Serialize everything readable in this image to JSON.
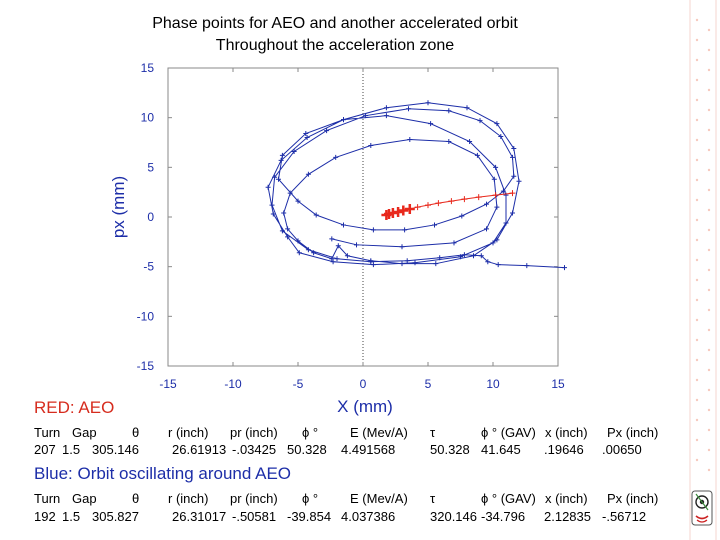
{
  "header": {
    "title_line1": "Phase points for AEO and another accelerated orbit",
    "title_line2": "Throughout the acceleration zone"
  },
  "chart_data": {
    "type": "scatter",
    "title": "Phase points for AEO and another accelerated orbit Throughout the acceleration zone",
    "xlabel": "X (mm)",
    "ylabel": "px (mm)",
    "xlim": [
      -15,
      15
    ],
    "ylim": [
      -15,
      15
    ],
    "x_ticks": [
      "-15",
      "-10",
      "-5",
      "0",
      "5",
      "10",
      "15"
    ],
    "y_ticks": [
      "15",
      "10",
      "5",
      "0",
      "-5",
      "-10",
      "-15"
    ],
    "zero_line": "dotted vertical at x=0",
    "series": [
      {
        "name": "AEO",
        "color": "#e8281c",
        "x": [
          1.8,
          2.0,
          2.3,
          2.7,
          3.1,
          3.6,
          4.2,
          5.0,
          5.8,
          6.8,
          7.8,
          8.9,
          10.2,
          11.5
        ],
        "y": [
          0.2,
          0.3,
          0.4,
          0.5,
          0.65,
          0.8,
          1.0,
          1.2,
          1.4,
          1.6,
          1.8,
          2.0,
          2.2,
          2.4
        ]
      },
      {
        "name": "Orbit oscillating around AEO",
        "color": "#1d2ea8",
        "x": [
          -2.4,
          -0.5,
          3.0,
          7.0,
          9.5,
          10.3,
          10.1,
          8.8,
          6.6,
          3.6,
          0.6,
          -2.1,
          -4.2,
          -5.6,
          -6.1,
          -5.8,
          -5.0,
          -3.8,
          -2.4,
          -1.9,
          -1.2,
          0.6,
          3.0,
          5.6,
          8.5,
          10.3,
          11.5,
          12.0,
          11.6,
          10.3,
          8.0,
          5.0,
          1.8,
          -1.5,
          -4.3,
          -6.3,
          -7.3,
          -6.9,
          -5.8,
          -4.9,
          -2.3,
          0.8,
          4.0,
          7.5,
          10.0,
          11.0,
          11.0,
          10.2,
          8.2,
          5.2,
          1.8,
          -1.5,
          -4.4,
          -6.2,
          -6.5,
          -5.0,
          -3.6,
          -1.5,
          0.8,
          3.2,
          5.5,
          7.6,
          9.5,
          10.8,
          11.6,
          11.5,
          10.6,
          9.0,
          6.6,
          3.5,
          0.2,
          -2.8,
          -5.3,
          -6.8,
          -7.0,
          -6.2,
          -4.2,
          -2.0,
          0.6,
          3.4,
          5.9,
          7.8,
          9.1,
          9.6,
          10.4,
          12.6,
          15.5
        ],
        "y": [
          -2.2,
          -2.8,
          -3.0,
          -2.6,
          -1.2,
          1.0,
          3.8,
          6.2,
          7.6,
          7.8,
          7.2,
          6.0,
          4.3,
          2.4,
          0.4,
          -1.2,
          -2.4,
          -3.6,
          -4.2,
          -2.9,
          -3.9,
          -4.4,
          -4.7,
          -4.7,
          -3.9,
          -2.3,
          0.4,
          3.6,
          6.9,
          9.4,
          11.0,
          11.5,
          11.0,
          9.8,
          8.0,
          5.7,
          3.0,
          0.3,
          -2.0,
          -3.6,
          -4.5,
          -4.8,
          -4.6,
          -4.0,
          -2.6,
          -0.6,
          2.2,
          5.0,
          7.6,
          9.4,
          10.2,
          9.8,
          8.4,
          6.2,
          3.8,
          1.6,
          0.2,
          -0.8,
          -1.3,
          -1.3,
          -0.8,
          0.1,
          1.3,
          2.6,
          4.1,
          6.0,
          8.1,
          9.7,
          10.7,
          10.9,
          10.2,
          8.7,
          6.6,
          4.0,
          1.2,
          -1.4,
          -3.3,
          -4.2,
          -4.5,
          -4.4,
          -4.1,
          -3.8,
          -3.9,
          -4.5,
          -4.8,
          -4.9,
          -5.1
        ]
      }
    ]
  },
  "red_section": {
    "label": "RED: AEO",
    "headers": [
      "Turn",
      "Gap",
      "θ",
      "r (inch)",
      "pr (inch)",
      "ϕ °",
      "E (Mev/A)",
      "τ",
      "ϕ ° (GAV)",
      "x (inch)",
      "Px (inch)"
    ],
    "values": [
      "207",
      "1.5",
      "305.146",
      "26.61913",
      "-.03425",
      "50.328",
      "4.491568",
      "50.328",
      "41.645",
      ".19646",
      ".00650"
    ]
  },
  "blue_section": {
    "label": "Blue: Orbit oscillating around AEO",
    "headers": [
      "Turn",
      "Gap",
      "θ",
      "r (inch)",
      "pr (inch)",
      "ϕ °",
      "E (Mev/A)",
      "τ",
      "ϕ ° (GAV)",
      "x (inch)",
      "Px (inch)"
    ],
    "values": [
      "192",
      "1.5",
      "305.827",
      "26.31017",
      "-.50581",
      "-39.854",
      "4.037386",
      "320.146",
      "-34.796",
      "2.12835",
      "-.56712"
    ]
  }
}
